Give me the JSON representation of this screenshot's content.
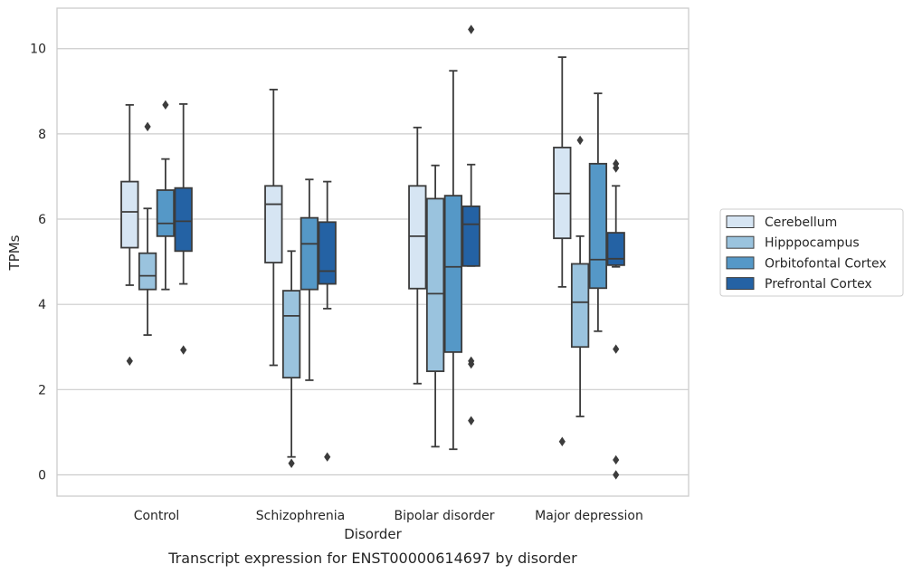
{
  "chart_data": {
    "type": "box",
    "title": "Transcript expression for ENST00000614697 by disorder",
    "xlabel": "Disorder",
    "ylabel": "TPMs",
    "ylim": [
      -0.5,
      10.95
    ],
    "yticks": [
      0,
      2,
      4,
      6,
      8,
      10
    ],
    "grid": "horizontal",
    "legend_position": "right",
    "categories": [
      "Control",
      "Schizophrenia",
      "Bipolar disorder",
      "Major depression"
    ],
    "series": [
      {
        "name": "Cerebellum",
        "color": "#d6e5f3",
        "boxes": [
          {
            "whisker_low": 4.45,
            "q1": 5.33,
            "median": 6.17,
            "q3": 6.88,
            "whisker_high": 8.68,
            "outliers": [
              2.67
            ]
          },
          {
            "whisker_low": 2.57,
            "q1": 4.98,
            "median": 6.35,
            "q3": 6.78,
            "whisker_high": 9.04,
            "outliers": []
          },
          {
            "whisker_low": 2.14,
            "q1": 4.37,
            "median": 5.6,
            "q3": 6.78,
            "whisker_high": 8.15,
            "outliers": []
          },
          {
            "whisker_low": 4.41,
            "q1": 5.55,
            "median": 6.6,
            "q3": 7.68,
            "whisker_high": 9.8,
            "outliers": [
              0.78
            ]
          }
        ]
      },
      {
        "name": "Hipppocampus",
        "color": "#9ac3de",
        "boxes": [
          {
            "whisker_low": 3.28,
            "q1": 4.35,
            "median": 4.67,
            "q3": 5.2,
            "whisker_high": 6.25,
            "outliers": [
              8.17
            ]
          },
          {
            "whisker_low": 0.42,
            "q1": 2.28,
            "median": 3.73,
            "q3": 4.32,
            "whisker_high": 5.25,
            "outliers": [
              0.27
            ]
          },
          {
            "whisker_low": 0.66,
            "q1": 2.43,
            "median": 4.25,
            "q3": 6.48,
            "whisker_high": 7.26,
            "outliers": []
          },
          {
            "whisker_low": 1.37,
            "q1": 3.0,
            "median": 4.05,
            "q3": 4.95,
            "whisker_high": 5.6,
            "outliers": [
              7.85
            ]
          }
        ]
      },
      {
        "name": "Orbitofontal Cortex",
        "color": "#5598c7",
        "boxes": [
          {
            "whisker_low": 4.35,
            "q1": 5.6,
            "median": 5.9,
            "q3": 6.68,
            "whisker_high": 7.41,
            "outliers": [
              8.68
            ]
          },
          {
            "whisker_low": 2.22,
            "q1": 4.35,
            "median": 5.42,
            "q3": 6.03,
            "whisker_high": 6.93,
            "outliers": []
          },
          {
            "whisker_low": 0.6,
            "q1": 2.88,
            "median": 4.88,
            "q3": 6.55,
            "whisker_high": 9.48,
            "outliers": []
          },
          {
            "whisker_low": 3.37,
            "q1": 4.38,
            "median": 5.05,
            "q3": 7.3,
            "whisker_high": 8.95,
            "outliers": []
          }
        ]
      },
      {
        "name": "Prefrontal Cortex",
        "color": "#2462a4",
        "boxes": [
          {
            "whisker_low": 4.48,
            "q1": 5.25,
            "median": 5.95,
            "q3": 6.73,
            "whisker_high": 8.7,
            "outliers": [
              2.93
            ]
          },
          {
            "whisker_low": 3.9,
            "q1": 4.48,
            "median": 4.78,
            "q3": 5.93,
            "whisker_high": 6.88,
            "outliers": [
              0.42
            ]
          },
          {
            "whisker_low": 4.9,
            "q1": 4.9,
            "median": 5.88,
            "q3": 6.3,
            "whisker_high": 7.28,
            "outliers": [
              1.27,
              2.6,
              2.67,
              10.45
            ]
          },
          {
            "whisker_low": 4.88,
            "q1": 4.92,
            "median": 5.07,
            "q3": 5.68,
            "whisker_high": 6.78,
            "outliers": [
              0.0,
              0.35,
              2.95,
              7.2,
              7.3
            ]
          }
        ]
      }
    ]
  }
}
